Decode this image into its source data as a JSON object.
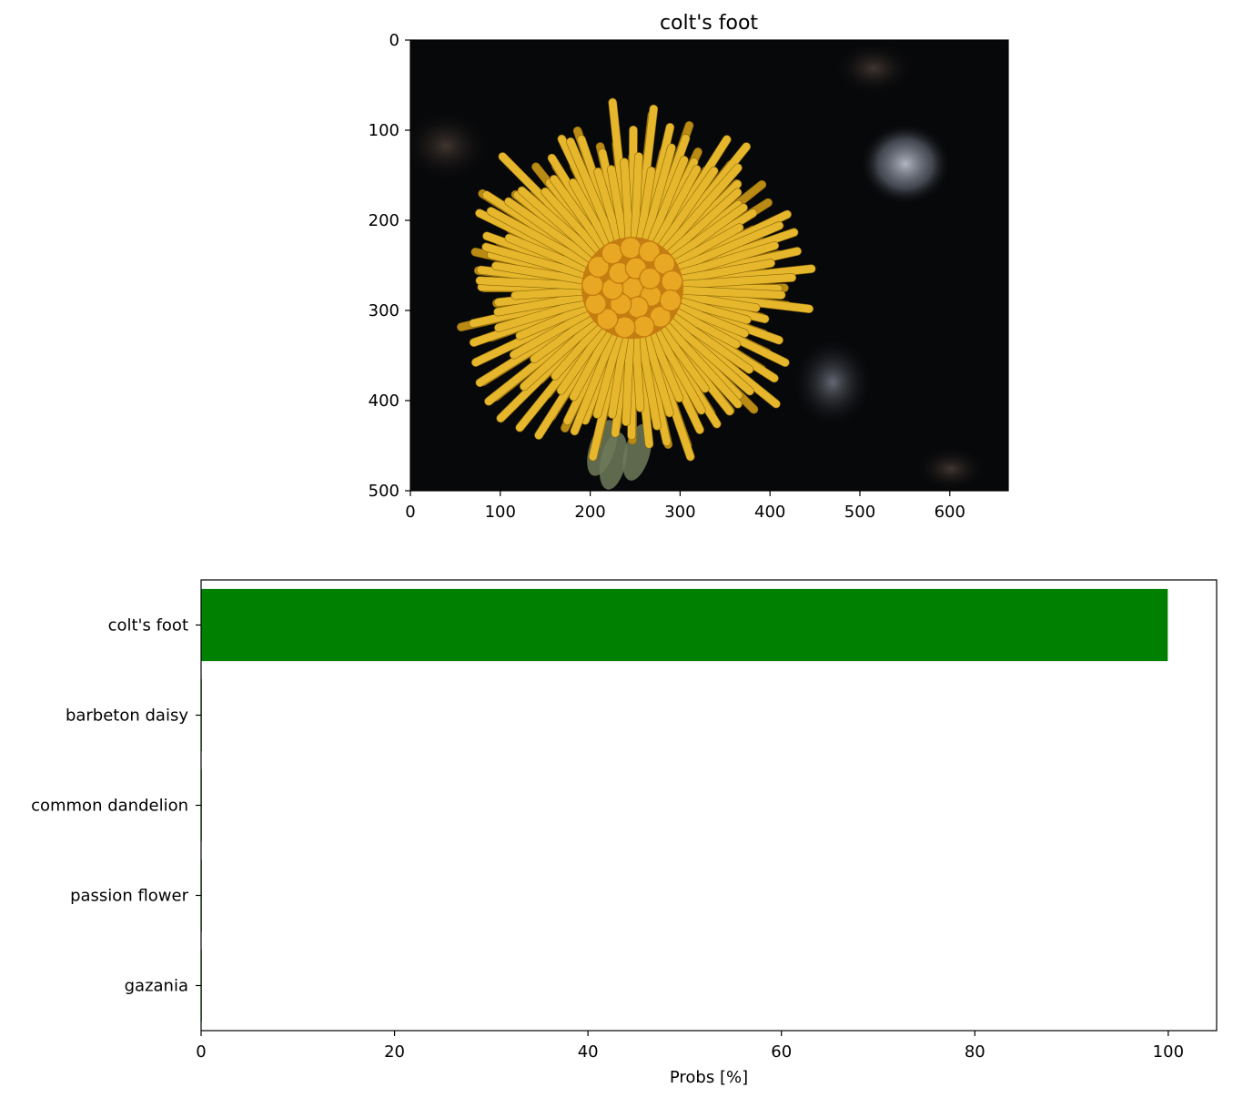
{
  "chart_data": [
    {
      "type": "image",
      "title": "colt's foot",
      "xlim": [
        0,
        665
      ],
      "ylim": [
        500,
        0
      ],
      "x_ticks": [
        0,
        100,
        200,
        300,
        400,
        500,
        600
      ],
      "y_ticks": [
        0,
        100,
        200,
        300,
        400,
        500
      ],
      "image": {
        "background": "#07080a",
        "flower_colors": {
          "petal": "#e6b72c",
          "petal_dark": "#b98a14",
          "disc": "#e9a823",
          "disc_dark": "#c47d10",
          "sepal": "#6e7a5a"
        },
        "flower_center": [
          247,
          275
        ]
      }
    },
    {
      "type": "bar",
      "orientation": "horizontal",
      "categories": [
        "colt's foot",
        "barbeton daisy",
        "common dandelion",
        "passion flower",
        "gazania"
      ],
      "values": [
        99.95,
        0.03,
        0.01,
        0.005,
        0.002
      ],
      "xlabel": "Probs [%]",
      "xlim": [
        0,
        105
      ],
      "x_ticks": [
        0,
        20,
        40,
        60,
        80,
        100
      ],
      "bar_color": "#008000"
    }
  ]
}
